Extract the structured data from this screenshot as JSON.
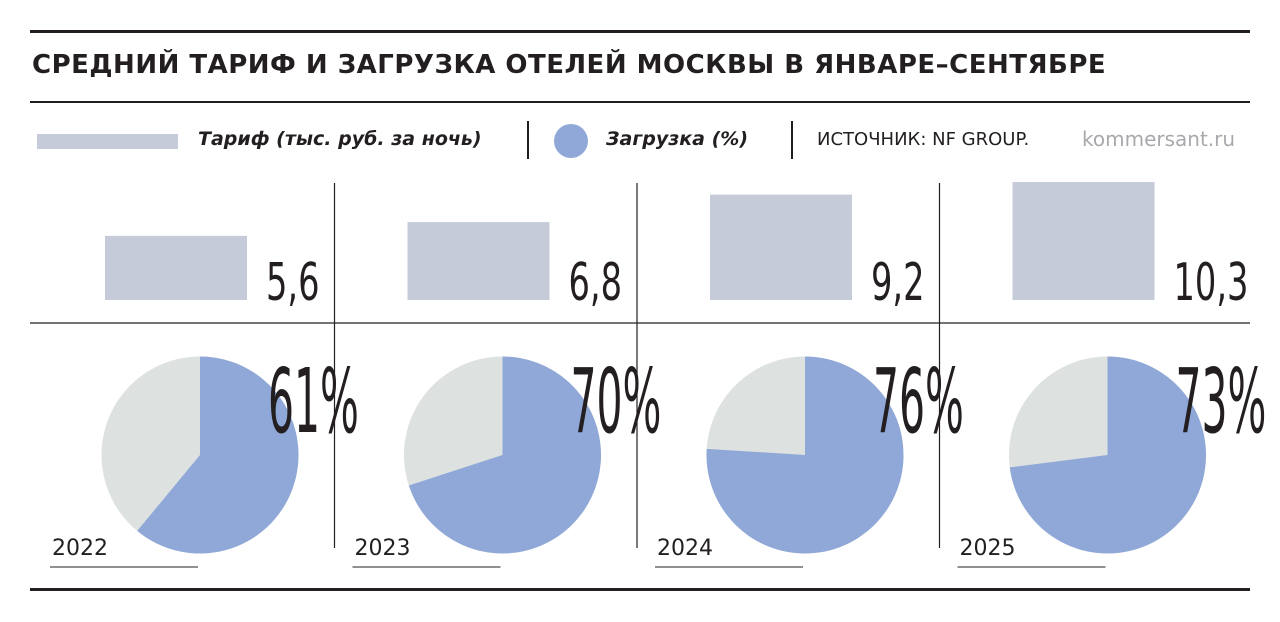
{
  "title": "СРЕДНИЙ ТАРИФ И ЗАГРУЗКА ОТЕЛЕЙ МОСКВЫ В ЯНВАРЕ–СЕНТЯБРЕ",
  "legend": {
    "tariff": "Тариф (тыс. руб. за ночь)",
    "occupancy": "Загрузка (%)"
  },
  "source": "ИСТОЧНИК: NF GROUP.",
  "site": "kommersant.ru",
  "colors": {
    "tariff_bar": "#c5cbd9",
    "occupancy_fill": "#8fa8d8",
    "occupancy_rest": "#dde1df",
    "ink": "#231f20"
  },
  "chart_data": {
    "type": "bar",
    "categories": [
      "2022",
      "2023",
      "2024",
      "2025"
    ],
    "series": [
      {
        "name": "Тариф (тыс. руб. за ночь)",
        "values": [
          5.6,
          6.8,
          9.2,
          10.3
        ],
        "labels": [
          "5,6",
          "6,8",
          "9,2",
          "10,3"
        ]
      },
      {
        "name": "Загрузка (%)",
        "type": "pie",
        "values": [
          61,
          70,
          76,
          73
        ],
        "labels": [
          "61%",
          "70%",
          "76%",
          "73%"
        ]
      }
    ]
  }
}
